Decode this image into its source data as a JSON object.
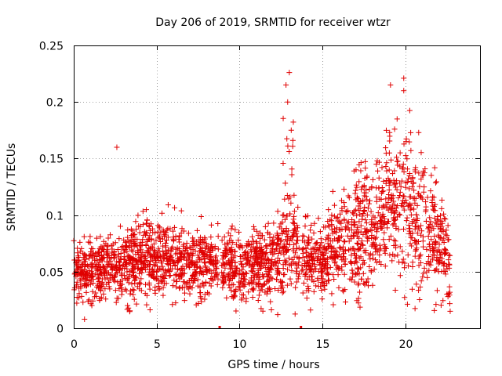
{
  "chart_data": {
    "type": "scatter",
    "title": "Day 206 of 2019, SRMTID for receiver wtzr",
    "xlabel": "GPS time / hours",
    "ylabel": "SRMTID / TECUs",
    "xlim": [
      0,
      24.5
    ],
    "ylim": [
      0,
      0.25
    ],
    "xticks": [
      0,
      5,
      10,
      15,
      20
    ],
    "xtick_labels": [
      "0",
      "5",
      "10",
      "15",
      "20"
    ],
    "yticks": [
      0,
      0.05,
      0.1,
      0.15,
      0.2,
      0.25
    ],
    "ytick_labels": [
      "0",
      "0.05",
      "0.1",
      "0.15",
      "0.2",
      "0.25"
    ],
    "grid": true,
    "marker": "+",
    "color": "#e00000",
    "series": [
      {
        "name": "SRMTID",
        "baseline_profile": [
          {
            "x": 0.0,
            "y": 0.052
          },
          {
            "x": 1.0,
            "y": 0.05
          },
          {
            "x": 2.0,
            "y": 0.053
          },
          {
            "x": 3.0,
            "y": 0.054
          },
          {
            "x": 4.0,
            "y": 0.06
          },
          {
            "x": 5.0,
            "y": 0.062
          },
          {
            "x": 6.0,
            "y": 0.06
          },
          {
            "x": 7.0,
            "y": 0.058
          },
          {
            "x": 8.0,
            "y": 0.057
          },
          {
            "x": 8.7,
            "y": 0.058
          },
          {
            "x": 9.0,
            "y": 0.055
          },
          {
            "x": 10.0,
            "y": 0.054
          },
          {
            "x": 11.0,
            "y": 0.056
          },
          {
            "x": 12.0,
            "y": 0.058
          },
          {
            "x": 12.5,
            "y": 0.066
          },
          {
            "x": 13.0,
            "y": 0.074
          },
          {
            "x": 13.5,
            "y": 0.07
          },
          {
            "x": 14.0,
            "y": 0.06
          },
          {
            "x": 15.0,
            "y": 0.058
          },
          {
            "x": 16.0,
            "y": 0.076
          },
          {
            "x": 17.0,
            "y": 0.085
          },
          {
            "x": 18.0,
            "y": 0.09
          },
          {
            "x": 19.0,
            "y": 0.1
          },
          {
            "x": 20.0,
            "y": 0.1
          },
          {
            "x": 21.0,
            "y": 0.09
          },
          {
            "x": 22.0,
            "y": 0.075
          },
          {
            "x": 22.7,
            "y": 0.06
          }
        ],
        "notable_points": [
          {
            "x": 2.6,
            "y": 0.16
          },
          {
            "x": 12.8,
            "y": 0.215
          },
          {
            "x": 13.0,
            "y": 0.226
          },
          {
            "x": 12.9,
            "y": 0.2
          },
          {
            "x": 19.1,
            "y": 0.215
          },
          {
            "x": 19.9,
            "y": 0.221
          },
          {
            "x": 19.9,
            "y": 0.21
          },
          {
            "x": 19.5,
            "y": 0.185
          },
          {
            "x": 20.8,
            "y": 0.173
          },
          {
            "x": 18.3,
            "y": 0.148
          },
          {
            "x": 0.65,
            "y": 0.008
          },
          {
            "x": 12.3,
            "y": 0.012
          },
          {
            "x": 22.7,
            "y": 0.015
          }
        ]
      }
    ],
    "data_gaps": [
      {
        "x": 8.8,
        "y": 0
      },
      {
        "x": 13.7,
        "y": 0
      }
    ]
  }
}
